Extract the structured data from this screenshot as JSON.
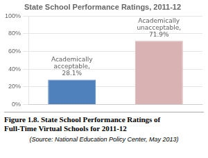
{
  "chart_data": {
    "type": "bar",
    "title": "State School Performance Ratings, 2011-12",
    "categories": [
      null,
      null
    ],
    "values": [
      28.1,
      71.9
    ],
    "colors": [
      "#4f81bd",
      "#d9b3b3"
    ],
    "ylim": [
      0,
      100
    ],
    "yticks": [
      {
        "value": 0,
        "label": "0%"
      },
      {
        "value": 20,
        "label": "20%"
      },
      {
        "value": 40,
        "label": "40%"
      },
      {
        "value": 60,
        "label": "60%"
      },
      {
        "value": 80,
        "label": "80%"
      },
      {
        "value": 100,
        "label": "100%"
      }
    ],
    "grid": true,
    "tick_labels": "y",
    "annotations": [
      "Academically\nacceptable,\n28.1%",
      "Academically\nunacceptable,\n71.9%"
    ],
    "caption": [
      "Figure 1.8. State School Performance Ratings of",
      "Full-Time Virtual Schools for 2011-12"
    ],
    "source": "(Source: National Education Policy Center, May 2013)"
  }
}
